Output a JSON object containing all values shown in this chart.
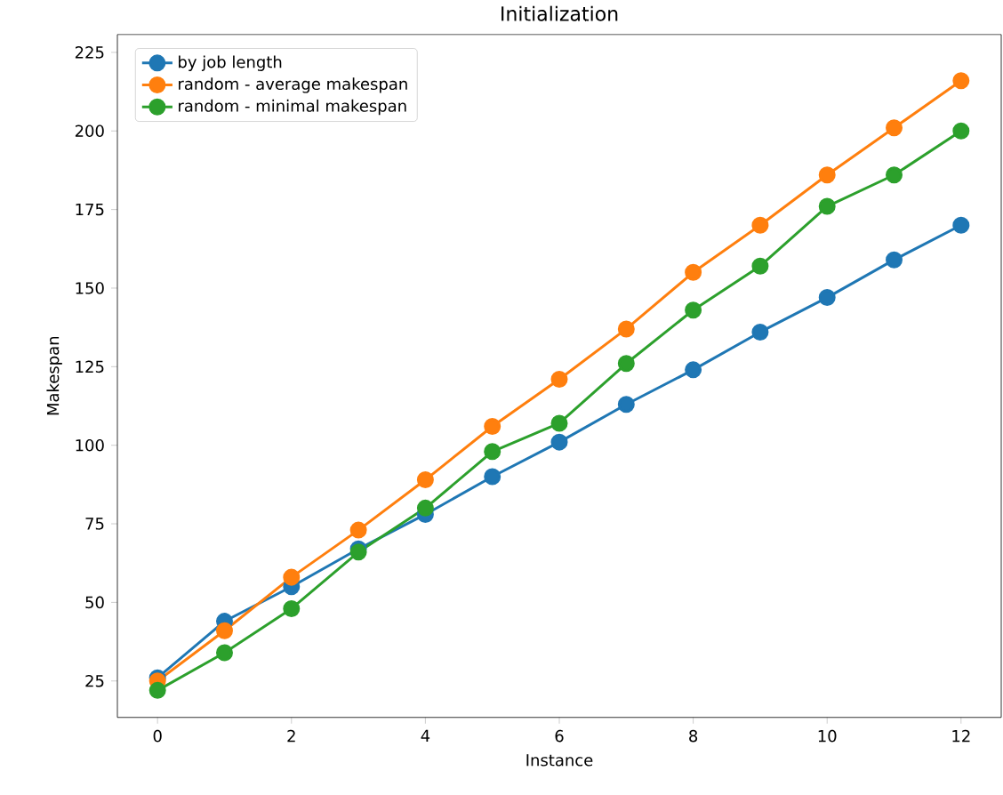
{
  "chart_data": {
    "type": "line",
    "title": "Initialization",
    "xlabel": "Instance",
    "ylabel": "Makespan",
    "x": [
      0,
      1,
      2,
      3,
      4,
      5,
      6,
      7,
      8,
      9,
      10,
      11,
      12
    ],
    "series": [
      {
        "name": "by job length",
        "color": "#1f77b4",
        "values": [
          26,
          44,
          55,
          67,
          78,
          90,
          101,
          113,
          124,
          136,
          147,
          159,
          170
        ]
      },
      {
        "name": "random - average makespan",
        "color": "#ff7f0e",
        "values": [
          25,
          41,
          58,
          73,
          89,
          106,
          121,
          137,
          155,
          170,
          186,
          201,
          216
        ]
      },
      {
        "name": "random - minimal makespan",
        "color": "#2ca02c",
        "values": [
          22,
          34,
          48,
          66,
          80,
          98,
          107,
          126,
          143,
          157,
          176,
          186,
          200
        ]
      }
    ],
    "xlim": [
      -0.6,
      12.6
    ],
    "ylim": [
      13.4,
      230.7
    ],
    "xticks": [
      0,
      2,
      4,
      6,
      8,
      10,
      12
    ],
    "yticks": [
      25,
      50,
      75,
      100,
      125,
      150,
      175,
      200,
      225
    ],
    "legend": "top left",
    "marker": "circle",
    "line_style": "solid",
    "grid": false
  }
}
